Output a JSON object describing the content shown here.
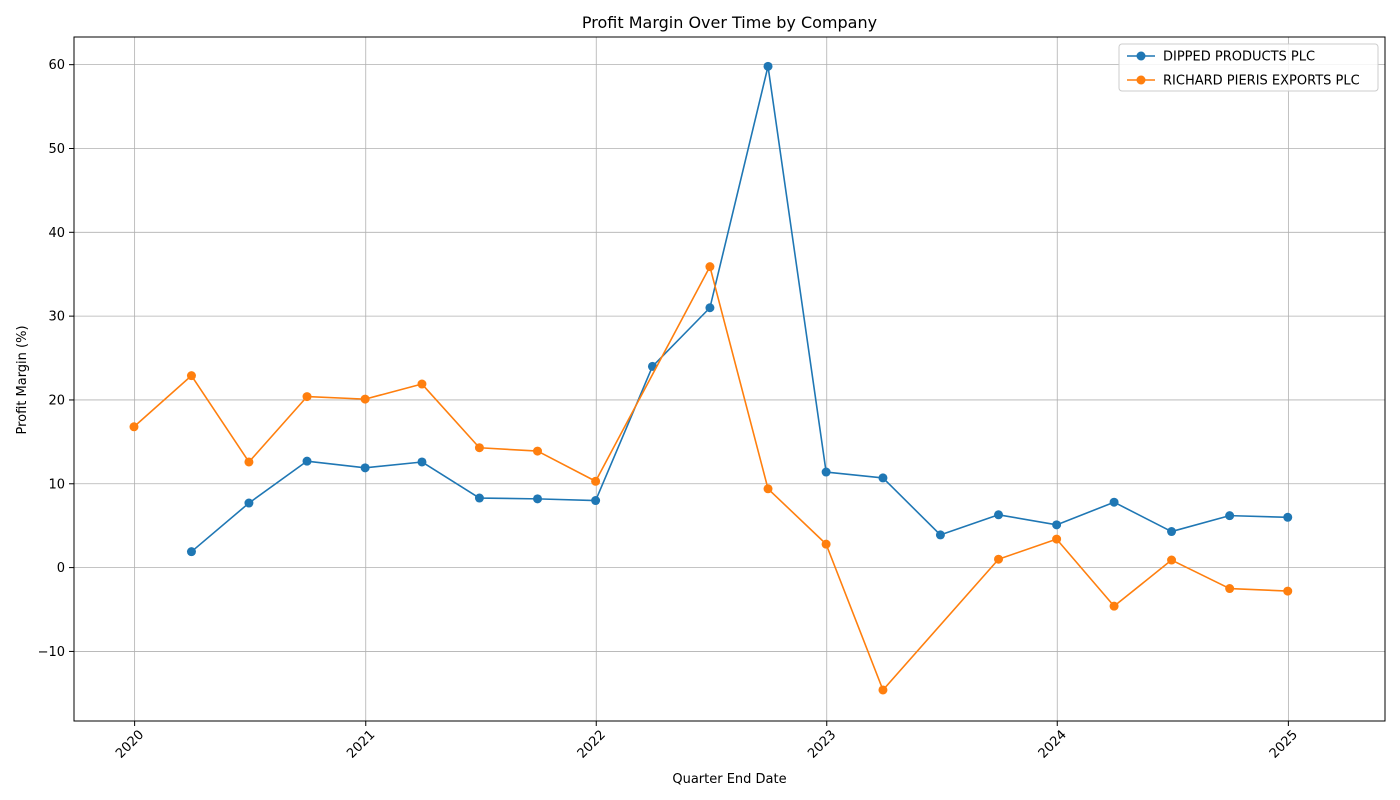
{
  "chart_data": {
    "type": "line",
    "title": "Profit Margin Over Time by Company",
    "xlabel": "Quarter End Date",
    "ylabel": "Profit Margin (%)",
    "xlim": [
      "2019-09-27",
      "2025-06-03"
    ],
    "ylim": [
      -18.3,
      63.3
    ],
    "x_ticks": [
      "2020-01-01",
      "2021-01-01",
      "2022-01-01",
      "2023-01-01",
      "2024-01-01",
      "2025-01-01"
    ],
    "x_tick_labels": [
      "2020",
      "2021",
      "2022",
      "2023",
      "2024",
      "2025"
    ],
    "y_ticks": [
      -10,
      0,
      10,
      20,
      30,
      40,
      50,
      60
    ],
    "y_tick_labels": [
      "−10",
      "0",
      "10",
      "20",
      "30",
      "40",
      "50",
      "60"
    ],
    "grid": true,
    "legend_position": "top-right",
    "series": [
      {
        "name": "DIPPED PRODUCTS PLC",
        "color": "#1f77b4",
        "x": [
          "2020-03-31",
          "2020-06-30",
          "2020-09-30",
          "2020-12-31",
          "2021-03-31",
          "2021-06-30",
          "2021-09-30",
          "2021-12-31",
          "2022-03-31",
          "2022-06-30",
          "2022-09-30",
          "2022-12-31",
          "2023-03-31",
          "2023-06-30",
          "2023-09-30",
          "2023-12-31",
          "2024-03-31",
          "2024-06-30",
          "2024-09-30",
          "2024-12-31"
        ],
        "values": [
          1.9,
          7.7,
          12.7,
          11.9,
          12.6,
          8.3,
          8.2,
          8.0,
          24.0,
          31.0,
          59.8,
          11.4,
          10.7,
          3.9,
          6.3,
          5.1,
          7.8,
          4.3,
          6.2,
          6.0
        ]
      },
      {
        "name": "RICHARD PIERIS EXPORTS PLC",
        "color": "#ff7f0e",
        "x": [
          "2019-12-31",
          "2020-03-31",
          "2020-06-30",
          "2020-09-30",
          "2020-12-31",
          "2021-03-31",
          "2021-06-30",
          "2021-09-30",
          "2021-12-31",
          "2022-06-30",
          "2022-09-30",
          "2022-12-31",
          "2023-03-31",
          "2023-09-30",
          "2023-12-31",
          "2024-03-31",
          "2024-06-30",
          "2024-09-30",
          "2024-12-31"
        ],
        "values": [
          16.8,
          22.9,
          12.6,
          20.4,
          20.1,
          21.9,
          14.3,
          13.9,
          10.3,
          35.9,
          9.4,
          2.8,
          -14.6,
          1.0,
          3.4,
          -4.6,
          0.9,
          -2.5,
          -2.8
        ]
      }
    ]
  }
}
